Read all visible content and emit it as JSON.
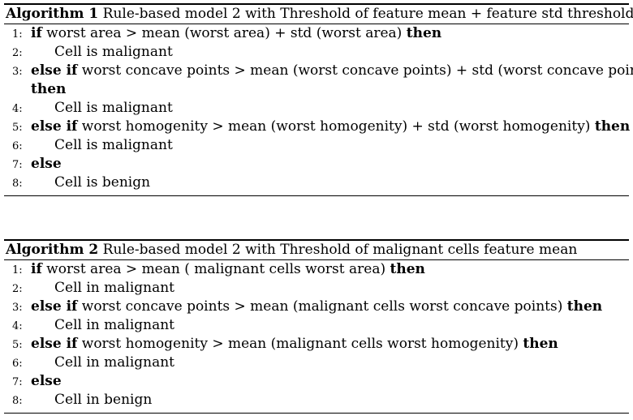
{
  "algorithm1": {
    "label": "Algorithm 1",
    "caption": "Rule-based model 2 with Threshold of feature mean + feature std threshold",
    "lines": [
      {
        "no": "1:",
        "kw": "if",
        "text": " worst area > mean (worst area) + std (worst area) ",
        "kw2": "then"
      },
      {
        "no": "2:",
        "text": "Cell is malignant"
      },
      {
        "no": "3:",
        "kw": "else if",
        "text": " worst concave points > mean (worst concave points) + std (worst concave points)"
      },
      {
        "kw": "then"
      },
      {
        "no": "4:",
        "text": "Cell is malignant"
      },
      {
        "no": "5:",
        "kw": "else if",
        "text": " worst homogenity > mean (worst homogenity) + std (worst homogenity) ",
        "kw2": "then"
      },
      {
        "no": "6:",
        "text": "Cell is malignant"
      },
      {
        "no": "7:",
        "kw": "else"
      },
      {
        "no": "8:",
        "text": "Cell is benign"
      }
    ]
  },
  "algorithm2": {
    "label": "Algorithm 2",
    "caption": "Rule-based model 2 with Threshold of malignant cells feature mean",
    "lines": [
      {
        "no": "1:",
        "kw": "if",
        "text": " worst area > mean ( malignant cells worst area) ",
        "kw2": "then"
      },
      {
        "no": "2:",
        "text": "Cell in malignant"
      },
      {
        "no": "3:",
        "kw": "else if",
        "text": " worst concave points > mean (malignant cells worst concave points) ",
        "kw2": "then"
      },
      {
        "no": "4:",
        "text": "Cell in malignant"
      },
      {
        "no": "5:",
        "kw": "else if",
        "text": " worst homogenity > mean (malignant cells worst homogenity) ",
        "kw2": "then"
      },
      {
        "no": "6:",
        "text": "Cell in malignant"
      },
      {
        "no": "7:",
        "kw": "else"
      },
      {
        "no": "8:",
        "text": "Cell in benign"
      }
    ]
  }
}
